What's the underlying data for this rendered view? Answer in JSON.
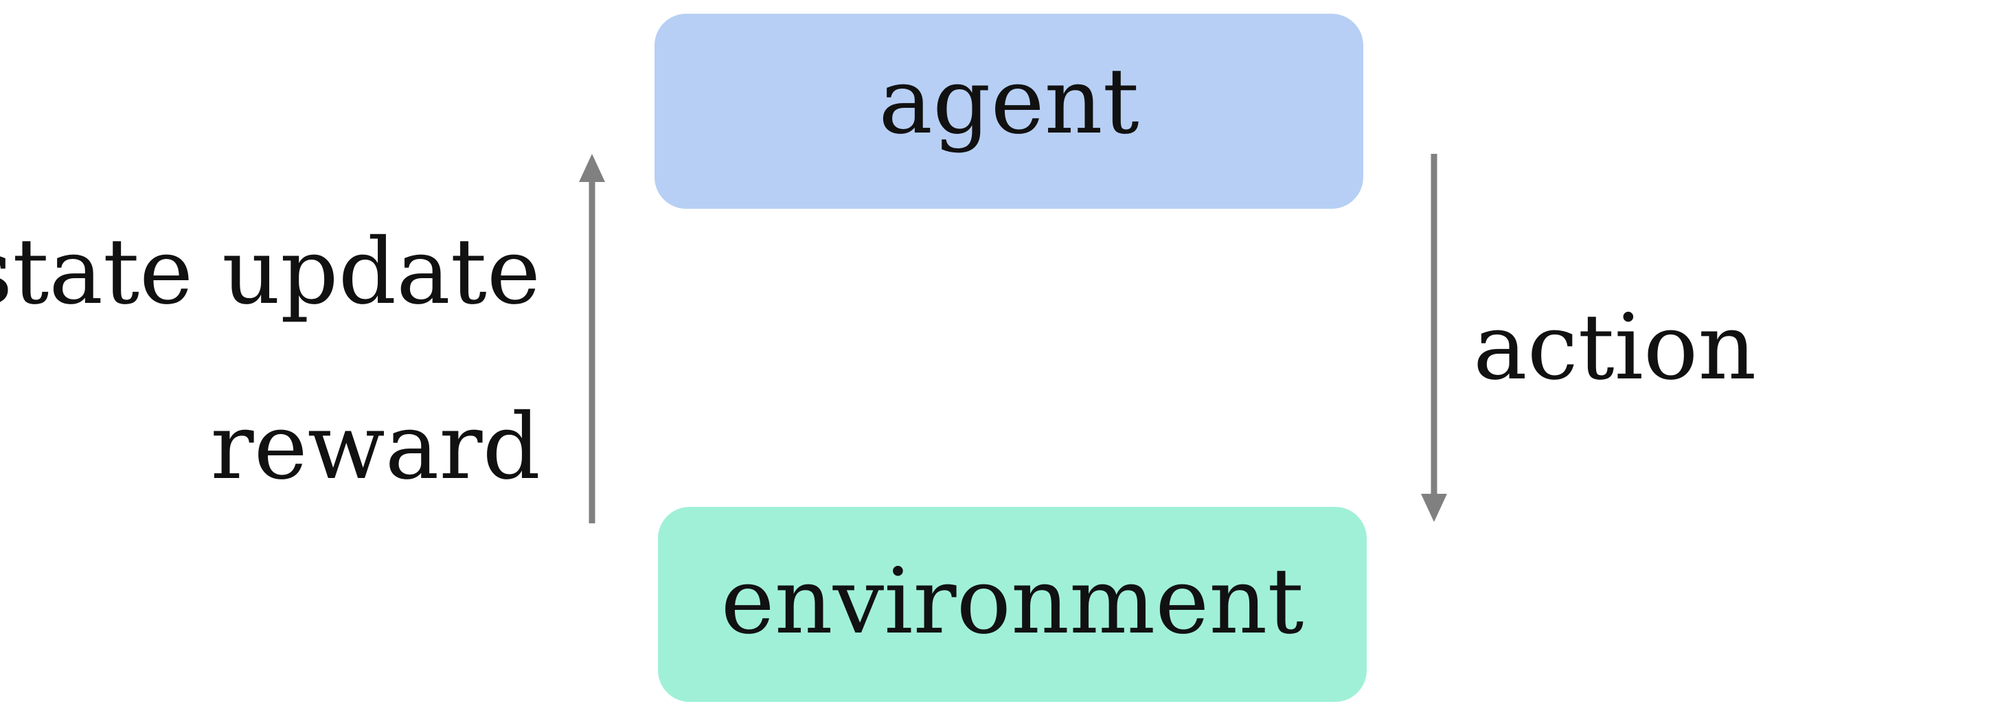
{
  "nodes": {
    "agent": {
      "label": "agent",
      "color": "#b7cff4"
    },
    "environment": {
      "label": "environment",
      "color": "#a0f0d8"
    }
  },
  "edges": {
    "feedback": {
      "labels": [
        "state update",
        "reward"
      ],
      "direction": "up",
      "color": "#808080"
    },
    "action": {
      "label": "action",
      "direction": "down",
      "color": "#808080"
    }
  }
}
